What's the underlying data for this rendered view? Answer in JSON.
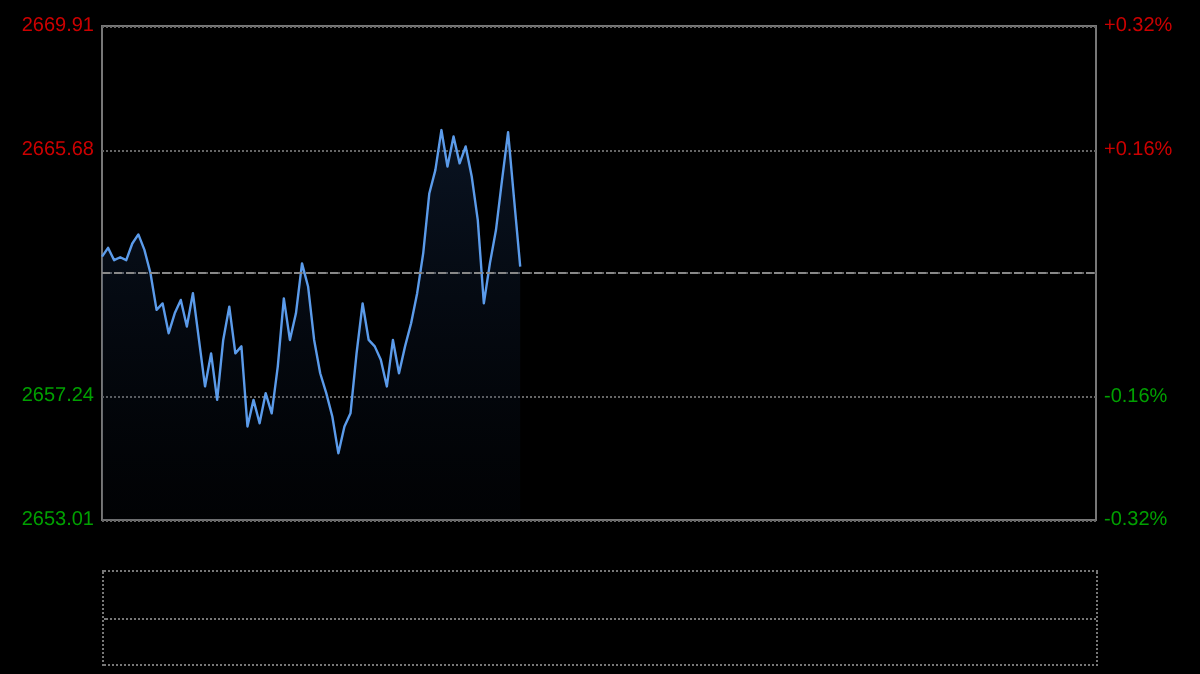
{
  "chart_data": {
    "type": "area",
    "categories": [
      null,
      null,
      null,
      null,
      null,
      null,
      null,
      null,
      null,
      null,
      null,
      null,
      null,
      null,
      null,
      null,
      null,
      null,
      null,
      null,
      null,
      null,
      null,
      null,
      null,
      null,
      null,
      null,
      null,
      null,
      null,
      null,
      null,
      null,
      null,
      null,
      null,
      null,
      null,
      null,
      null,
      null,
      null,
      null,
      null,
      null,
      null,
      null,
      null,
      null,
      null,
      null,
      null,
      null,
      null,
      null,
      null,
      null,
      null,
      null,
      null,
      null,
      null,
      null,
      null,
      null,
      null,
      null,
      null,
      null,
      null,
      null,
      null,
      null,
      null,
      null,
      null,
      null,
      null,
      null,
      null,
      null,
      null,
      null,
      null,
      null,
      null,
      null,
      null,
      null,
      null,
      null,
      null,
      null,
      null,
      null,
      null,
      null,
      null,
      null,
      null,
      null,
      null,
      null,
      null,
      null,
      null,
      null,
      null,
      null,
      null,
      null,
      null,
      null,
      null,
      null,
      null,
      null,
      null,
      null,
      null,
      null,
      null,
      null,
      null,
      null,
      null,
      null,
      null,
      null,
      null,
      null,
      null,
      null,
      null,
      null,
      null,
      null,
      null,
      null,
      null,
      null,
      null,
      null,
      null,
      null,
      null,
      null,
      null,
      null,
      null,
      null,
      null,
      null,
      null,
      null,
      null,
      null,
      null,
      null,
      null,
      null,
      null,
      null,
      null
    ],
    "series": [
      {
        "color": "#5b9bea",
        "values": [
          2662.02,
          2662.32,
          2661.9,
          2662.0,
          2661.9,
          2662.47,
          2662.78,
          2662.25,
          2661.45,
          2660.2,
          2660.42,
          2659.4,
          2660.08,
          2660.54,
          2659.63,
          2660.77,
          2659.17,
          2657.58,
          2658.71,
          2657.12,
          2659.17,
          2660.31,
          2658.71,
          2658.95,
          2656.21,
          2657.12,
          2656.32,
          2657.35,
          2656.66,
          2658.26,
          2660.59,
          2659.17,
          2660.08,
          2661.79,
          2661.0,
          2659.17,
          2658.03,
          2657.35,
          2656.55,
          2655.29,
          2656.21,
          2656.66,
          2658.71,
          2660.42,
          2659.17,
          2658.95,
          2658.49,
          2657.58,
          2659.17,
          2658.03,
          2658.95,
          2659.74,
          2660.77,
          2662.14,
          2664.18,
          2664.98,
          2666.35,
          2665.1,
          2666.13,
          2665.21,
          2665.79,
          2664.76,
          2663.27,
          2660.42,
          2661.79,
          2662.93,
          2664.64,
          2666.28,
          2663.96,
          2661.68,
          null,
          null,
          null,
          null,
          null,
          null,
          null,
          null,
          null,
          null,
          null,
          null,
          null,
          null,
          null,
          null,
          null,
          null,
          null,
          null,
          null,
          null,
          null,
          null,
          null,
          null,
          null,
          null,
          null,
          null,
          null,
          null,
          null,
          null,
          null,
          null,
          null,
          null,
          null,
          null,
          null,
          null,
          null,
          null,
          null,
          null,
          null,
          null,
          null,
          null,
          null,
          null,
          null,
          null,
          null,
          null,
          null,
          null,
          null,
          null,
          null,
          null,
          null,
          null,
          null,
          null,
          null,
          null,
          null,
          null,
          null,
          null,
          null,
          null,
          null,
          null,
          null,
          null,
          null,
          null,
          null,
          null,
          null,
          null,
          null,
          null,
          null,
          null,
          null,
          null,
          null,
          null,
          null,
          null,
          null
        ]
      }
    ],
    "ylim": [
      2653.01,
      2669.91
    ],
    "yticks": [
      2653.01,
      2657.24,
      {
        "value": 2661.46,
        "label": null
      },
      2665.68,
      2669.91
    ],
    "y2lim": [
      -0.32,
      0.32
    ],
    "y2ticks": [
      {
        "value": -0.32,
        "label": "-0.32%"
      },
      {
        "value": -0.16,
        "label": "-0.16%"
      },
      {
        "value": 0,
        "label": null
      },
      {
        "value": 0.16,
        "label": "+0.16%"
      },
      {
        "value": 0.32,
        "label": "+0.32%"
      }
    ],
    "ref_lines": [
      {
        "axis": "y",
        "value": 2661.46,
        "color": "#888888",
        "line_style": "dashed"
      }
    ],
    "grid": "y",
    "marker": "none",
    "line_style": "solid"
  }
}
